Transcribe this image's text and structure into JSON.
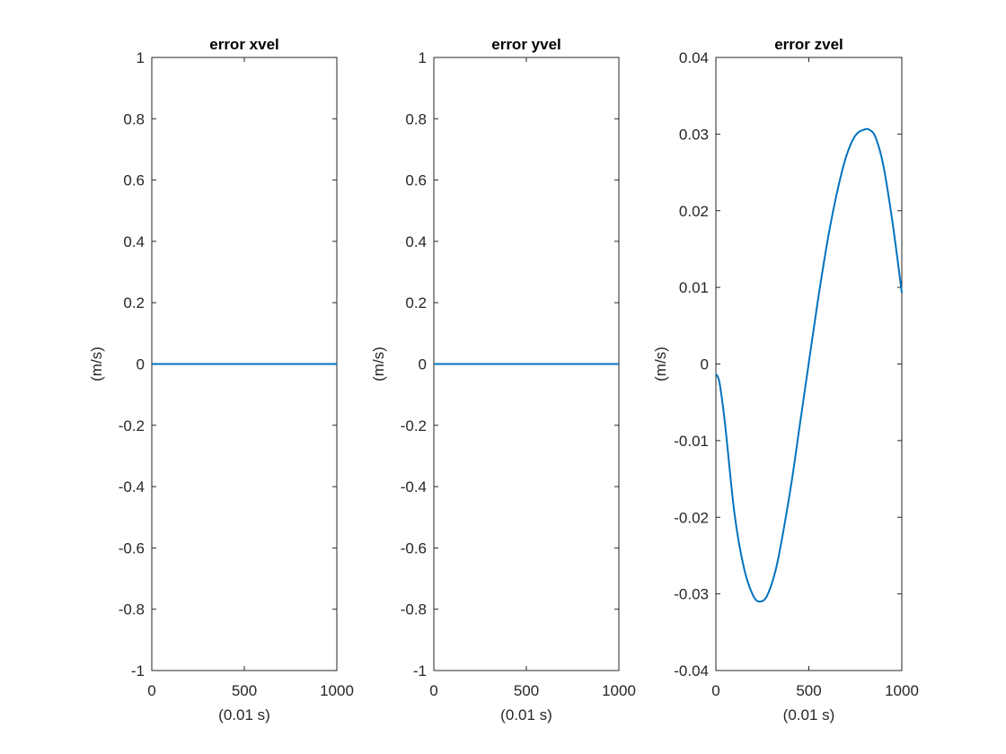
{
  "chart_data": [
    {
      "type": "line",
      "title": "error xvel",
      "xlabel": "(0.01 s)",
      "ylabel": "(m/s)",
      "xlim": [
        0,
        1000
      ],
      "ylim": [
        -1,
        1
      ],
      "xticks": [
        0,
        500,
        1000
      ],
      "xtick_labels": [
        "0",
        "500",
        "1000"
      ],
      "yticks": [
        -1,
        -0.8,
        -0.6,
        -0.4,
        -0.2,
        0,
        0.2,
        0.4,
        0.6,
        0.8,
        1
      ],
      "ytick_labels": [
        "-1",
        "-0.8",
        "-0.6",
        "-0.4",
        "-0.2",
        "0",
        "0.2",
        "0.4",
        "0.6",
        "0.8",
        "1"
      ],
      "grid": false,
      "line_color": "#0072BD",
      "series": [
        {
          "x": [
            0,
            1000
          ],
          "y": [
            0,
            0
          ]
        }
      ]
    },
    {
      "type": "line",
      "title": "error yvel",
      "xlabel": "(0.01 s)",
      "ylabel": "(m/s)",
      "xlim": [
        0,
        1000
      ],
      "ylim": [
        -1,
        1
      ],
      "xticks": [
        0,
        500,
        1000
      ],
      "xtick_labels": [
        "0",
        "500",
        "1000"
      ],
      "yticks": [
        -1,
        -0.8,
        -0.6,
        -0.4,
        -0.2,
        0,
        0.2,
        0.4,
        0.6,
        0.8,
        1
      ],
      "ytick_labels": [
        "-1",
        "-0.8",
        "-0.6",
        "-0.4",
        "-0.2",
        "0",
        "0.2",
        "0.4",
        "0.6",
        "0.8",
        "1"
      ],
      "grid": false,
      "line_color": "#0072BD",
      "series": [
        {
          "x": [
            0,
            1000
          ],
          "y": [
            0,
            0
          ]
        }
      ]
    },
    {
      "type": "line",
      "title": "error zvel",
      "xlabel": "(0.01 s)",
      "ylabel": "(m/s)",
      "xlim": [
        0,
        1000
      ],
      "ylim": [
        -0.04,
        0.04
      ],
      "xticks": [
        0,
        500,
        1000
      ],
      "xtick_labels": [
        "0",
        "500",
        "1000"
      ],
      "yticks": [
        -0.04,
        -0.03,
        -0.02,
        -0.01,
        0,
        0.01,
        0.02,
        0.03,
        0.04
      ],
      "ytick_labels": [
        "-0.04",
        "-0.03",
        "-0.02",
        "-0.01",
        "0",
        "0.01",
        "0.02",
        "0.03",
        "0.04"
      ],
      "grid": false,
      "line_color": "#0072BD",
      "series": [
        {
          "x": [
            0,
            20,
            50,
            100,
            150,
            200,
            240,
            280,
            330,
            400,
            450,
            500,
            550,
            600,
            650,
            700,
            750,
            800,
            830,
            860,
            900,
            950,
            1000
          ],
          "y": [
            -0.0013,
            -0.0025,
            -0.008,
            -0.0195,
            -0.0265,
            -0.0302,
            -0.031,
            -0.03,
            -0.026,
            -0.0165,
            -0.0082,
            0.0002,
            0.0085,
            0.016,
            0.0222,
            0.027,
            0.0298,
            0.0306,
            0.0305,
            0.0295,
            0.026,
            0.0185,
            0.0093
          ]
        }
      ]
    }
  ]
}
